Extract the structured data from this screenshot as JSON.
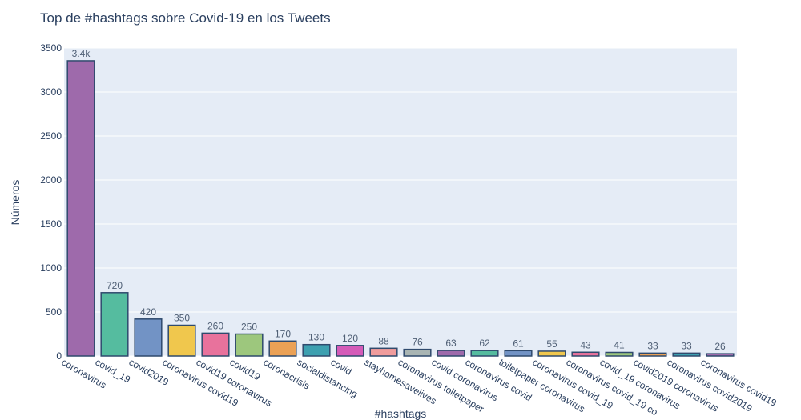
{
  "chart_data": {
    "type": "bar",
    "title": "Top de #hashtags sobre Covid-19 en los Tweets",
    "xlabel": "#hashtags",
    "ylabel": "Números",
    "ylim": [
      0,
      3500
    ],
    "yticks": [
      0,
      500,
      1000,
      1500,
      2000,
      2500,
      3000,
      3500
    ],
    "grid": true,
    "categories": [
      "coronavirus",
      "covid_19",
      "covid2019",
      "coronavirus covid19",
      "covid19 coronavirus",
      "covid19",
      "coronacrisis",
      "socialdistancing",
      "covid",
      "stayhomesavelives",
      "coronavirus toiletpaper",
      "covid coronavirus",
      "coronavirus covid",
      "toiletpaper coronavirus",
      "coronavirus covid_19",
      "coronavirus covid_19 co",
      "covid_19 coronavirus",
      "covid2019 coronavirus",
      "coronavirus covid2019",
      "coronavirus covid19"
    ],
    "values": [
      3355,
      720,
      420,
      350,
      260,
      250,
      170,
      130,
      120,
      88,
      76,
      63,
      62,
      61,
      55,
      43,
      41,
      33,
      33,
      26
    ],
    "data_labels": [
      "3.4k",
      "720",
      "420",
      "350",
      "260",
      "250",
      "170",
      "130",
      "120",
      "88",
      "76",
      "63",
      "62",
      "61",
      "55",
      "43",
      "41",
      "33",
      "33",
      "26"
    ],
    "colors": [
      "#9e6aab",
      "#55bc9f",
      "#7293c5",
      "#f0c74d",
      "#e8729c",
      "#9dc77d",
      "#eba155",
      "#3da0b0",
      "#d45bb8",
      "#f09c9c",
      "#a9b5b3",
      "#9e6aab",
      "#55bc9f",
      "#7293c5",
      "#f0c74d",
      "#e8729c",
      "#9dc77d",
      "#eba155",
      "#3da0b0",
      "#9e6aab"
    ],
    "plot_bg": "#e5ecf6",
    "bar_border": "#2f4a6d"
  }
}
